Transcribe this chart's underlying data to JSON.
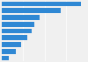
{
  "values": [
    1020,
    760,
    490,
    420,
    380,
    330,
    255,
    185,
    95
  ],
  "bar_color": "#2f88d4",
  "background_color": "#f0f0f0",
  "plot_bg_color": "#f0f0f0",
  "xlim": [
    0,
    1100
  ],
  "bar_height": 0.75,
  "figsize": [
    1.0,
    0.71
  ],
  "dpi": 100,
  "grid_color": "#ffffff",
  "grid_linewidth": 0.5
}
